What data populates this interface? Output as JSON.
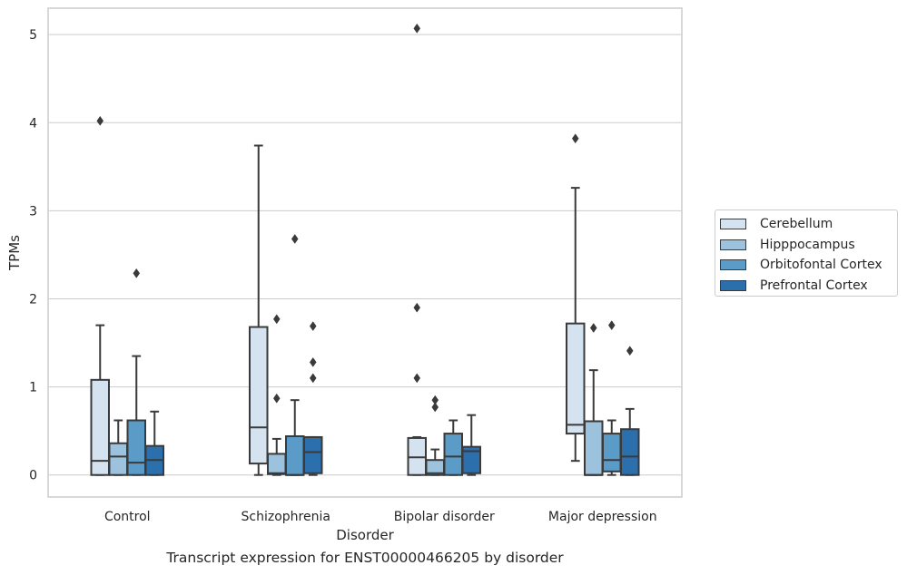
{
  "caption": "Transcript expression for ENST00000466205 by disorder",
  "chart_data": {
    "type": "boxplot",
    "title": "",
    "xlabel": "Disorder",
    "ylabel": "TPMs",
    "ylim": [
      -0.25,
      5.3
    ],
    "yticks": [
      0,
      1,
      2,
      3,
      4,
      5
    ],
    "grid": "horizontal",
    "legend_position": "right",
    "categories": [
      "Control",
      "Schizophrenia",
      "Bipolar disorder",
      "Major depression"
    ],
    "series": [
      {
        "name": "Cerebellum",
        "color": "#d5e3f1",
        "boxes": [
          {
            "whisker_low": 0.0,
            "q1": 0.0,
            "median": 0.16,
            "q3": 1.08,
            "whisker_high": 1.7,
            "outliers": [
              4.02
            ]
          },
          {
            "whisker_low": 0.0,
            "q1": 0.13,
            "median": 0.54,
            "q3": 1.68,
            "whisker_high": 3.74,
            "outliers": []
          },
          {
            "whisker_low": 0.0,
            "q1": 0.0,
            "median": 0.2,
            "q3": 0.42,
            "whisker_high": 0.43,
            "outliers": [
              1.9,
              1.1,
              5.07
            ]
          },
          {
            "whisker_low": 0.16,
            "q1": 0.47,
            "median": 0.57,
            "q3": 1.72,
            "whisker_high": 3.26,
            "outliers": [
              3.82
            ]
          }
        ]
      },
      {
        "name": "Hipppocampus",
        "color": "#9dc2dd",
        "boxes": [
          {
            "whisker_low": 0.0,
            "q1": 0.0,
            "median": 0.21,
            "q3": 0.36,
            "whisker_high": 0.62,
            "outliers": []
          },
          {
            "whisker_low": 0.0,
            "q1": 0.01,
            "median": 0.02,
            "q3": 0.24,
            "whisker_high": 0.41,
            "outliers": [
              0.87,
              1.77
            ]
          },
          {
            "whisker_low": 0.0,
            "q1": 0.0,
            "median": 0.02,
            "q3": 0.17,
            "whisker_high": 0.29,
            "outliers": [
              0.77,
              0.85
            ]
          },
          {
            "whisker_low": 0.0,
            "q1": 0.0,
            "median": 0.0,
            "q3": 0.61,
            "whisker_high": 1.19,
            "outliers": [
              1.67
            ]
          }
        ]
      },
      {
        "name": "Orbitofontal Cortex",
        "color": "#5a9bc8",
        "boxes": [
          {
            "whisker_low": 0.0,
            "q1": 0.0,
            "median": 0.14,
            "q3": 0.62,
            "whisker_high": 1.35,
            "outliers": [
              2.29
            ]
          },
          {
            "whisker_low": 0.0,
            "q1": 0.0,
            "median": 0.0,
            "q3": 0.44,
            "whisker_high": 0.85,
            "outliers": [
              2.68
            ]
          },
          {
            "whisker_low": 0.0,
            "q1": 0.0,
            "median": 0.21,
            "q3": 0.47,
            "whisker_high": 0.62,
            "outliers": []
          },
          {
            "whisker_low": 0.0,
            "q1": 0.04,
            "median": 0.17,
            "q3": 0.47,
            "whisker_high": 0.62,
            "outliers": [
              1.7
            ]
          }
        ]
      },
      {
        "name": "Prefrontal Cortex",
        "color": "#2c6fad",
        "boxes": [
          {
            "whisker_low": 0.0,
            "q1": 0.0,
            "median": 0.17,
            "q3": 0.33,
            "whisker_high": 0.72,
            "outliers": []
          },
          {
            "whisker_low": 0.0,
            "q1": 0.02,
            "median": 0.26,
            "q3": 0.43,
            "whisker_high": 0.43,
            "outliers": [
              1.1,
              1.28,
              1.69
            ]
          },
          {
            "whisker_low": 0.0,
            "q1": 0.02,
            "median": 0.27,
            "q3": 0.32,
            "whisker_high": 0.68,
            "outliers": []
          },
          {
            "whisker_low": 0.0,
            "q1": 0.0,
            "median": 0.21,
            "q3": 0.52,
            "whisker_high": 0.75,
            "outliers": [
              1.41
            ]
          }
        ]
      }
    ]
  }
}
